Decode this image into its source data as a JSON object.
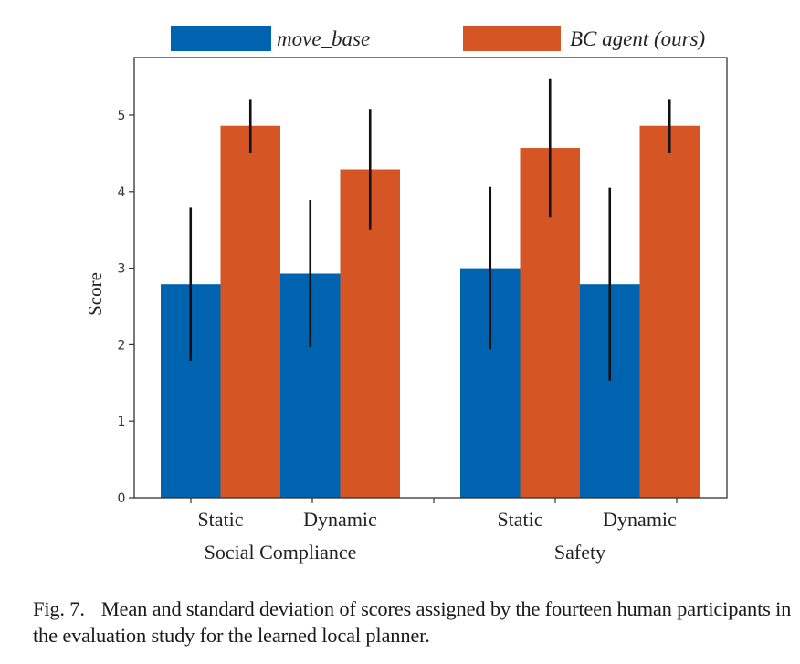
{
  "chart_data": {
    "type": "bar",
    "title": "",
    "xlabel": "",
    "ylabel": "Score",
    "ylim": [
      0,
      5.7
    ],
    "yticks": [
      0,
      1,
      2,
      3,
      4,
      5
    ],
    "grid": false,
    "legend_position": "top",
    "groups": [
      {
        "label": "Social Compliance",
        "categories": [
          "Static",
          "Dynamic"
        ]
      },
      {
        "label": "Safety",
        "categories": [
          "Static",
          "Dynamic"
        ]
      }
    ],
    "categories": [
      "Social Compliance / Static",
      "Social Compliance / Dynamic",
      "Safety / Static",
      "Safety / Dynamic"
    ],
    "series": [
      {
        "name": "move_base",
        "color": "#0063AF",
        "values": [
          2.79,
          2.93,
          3.0,
          2.79
        ],
        "errors": [
          1.0,
          0.96,
          1.06,
          1.26
        ]
      },
      {
        "name": "BC agent (ours)",
        "color": "#D55525",
        "values": [
          4.86,
          4.29,
          4.57,
          4.86
        ],
        "errors": [
          0.35,
          0.79,
          0.91,
          0.35
        ]
      }
    ]
  },
  "caption": {
    "label": "Fig. 7.",
    "text": "Mean and standard deviation of scores assigned by the fourteen human participants in the evaluation study for the learned local planner."
  }
}
